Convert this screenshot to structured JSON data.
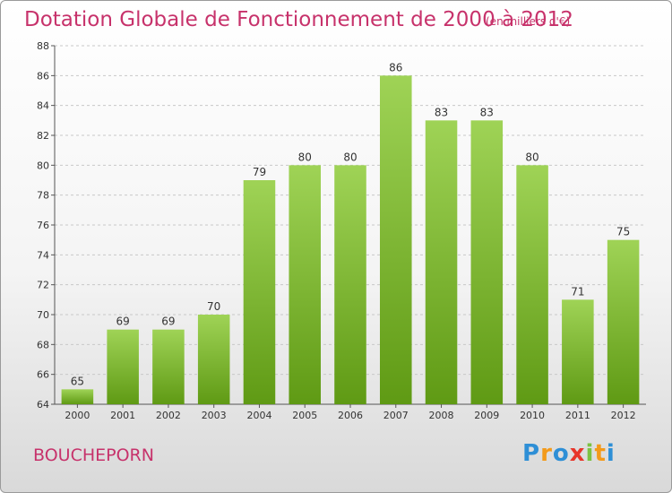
{
  "title": "Dotation Globale de Fonctionnement de 2000 à 2012",
  "unit": "(en milliers d'€)",
  "commune": "BOUCHEPORN",
  "logo": {
    "letters": [
      "P",
      "r",
      "o",
      "x",
      "i",
      "t",
      "i"
    ],
    "colors": [
      "#2e8fd6",
      "#f39a1a",
      "#2e8fd6",
      "#e8352a",
      "#7cc242",
      "#f39a1a",
      "#2e8fd6"
    ]
  },
  "colors": {
    "bar_top": "#9fd356",
    "bar_bottom": "#5f9a14",
    "title": "#c7326b",
    "grid": "#c8c8c8"
  },
  "chart_data": {
    "type": "bar",
    "title": "Dotation Globale de Fonctionnement de 2000 à 2012",
    "subtitle": "(en milliers d'€)",
    "categories": [
      "2000",
      "2001",
      "2002",
      "2003",
      "2004",
      "2005",
      "2006",
      "2007",
      "2008",
      "2009",
      "2010",
      "2011",
      "2012"
    ],
    "values": [
      65,
      69,
      69,
      70,
      79,
      80,
      80,
      86,
      83,
      83,
      80,
      71,
      75
    ],
    "ylim": [
      64,
      88
    ],
    "yticks": [
      64,
      66,
      68,
      70,
      72,
      74,
      76,
      78,
      80,
      82,
      84,
      86,
      88
    ],
    "grid": "horizontal dashed",
    "legend": "none"
  }
}
